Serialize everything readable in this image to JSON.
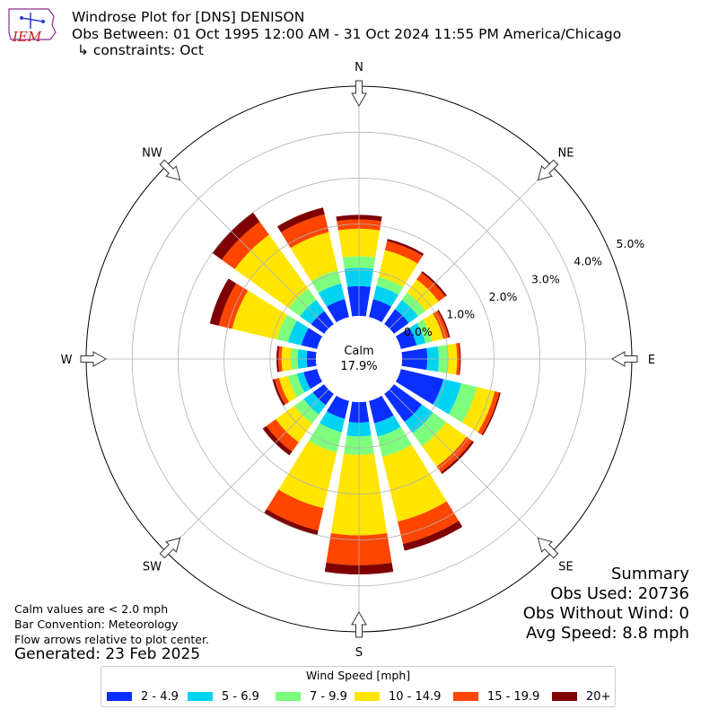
{
  "header": {
    "title": "Windrose Plot for [DNS] DENISON",
    "period": "Obs Between: 01 Oct 1995 12:00 AM - 31 Oct 2024 11:55 PM America/Chicago",
    "constraints": "↳ constraints: Oct"
  },
  "logo": {
    "text": "IEM",
    "icon": "iem-logo-icon"
  },
  "notes": {
    "calm": "Calm values are < 2.0 mph",
    "convention": "Bar Convention: Meteorology",
    "arrows": "Flow arrows relative to plot center.",
    "generated": "Generated: 23 Feb 2025"
  },
  "summary": {
    "title": "Summary",
    "obs_used": "Obs Used: 20736",
    "obs_without_wind": "Obs Without Wind: 0",
    "avg_speed": "Avg Speed: 8.8 mph"
  },
  "chart_data": {
    "type": "windrose",
    "calm": {
      "label": "Calm",
      "value": "17.9%"
    },
    "directions": [
      "N",
      "NNE",
      "NE",
      "ENE",
      "E",
      "ESE",
      "SE",
      "SSE",
      "S",
      "SSW",
      "SW",
      "WSW",
      "W",
      "WNW",
      "NW",
      "NNW"
    ],
    "dir_labels": [
      "N",
      "NE",
      "E",
      "SE",
      "S",
      "SW",
      "W",
      "NW"
    ],
    "r_ticks": [
      "0.0%",
      "1.0%",
      "2.0%",
      "3.0%",
      "4.0%",
      "5.0%"
    ],
    "r_max": 5.0,
    "legend_title": "Wind Speed [mph]",
    "bins": [
      {
        "name": "2 - 4.9",
        "color": "#0a2eff"
      },
      {
        "name": "5 - 6.9",
        "color": "#00d2f2"
      },
      {
        "name": "7 - 9.9",
        "color": "#7dff7d"
      },
      {
        "name": "10 - 14.9",
        "color": "#ffe500"
      },
      {
        "name": "15 - 19.9",
        "color": "#ff4500"
      },
      {
        "name": "20+",
        "color": "#7f0000"
      }
    ],
    "values_cumulative_percent": [
      [
        0.65,
        1.05,
        1.3,
        1.9,
        2.1,
        2.2
      ],
      [
        0.4,
        0.7,
        0.9,
        1.5,
        1.7,
        1.75
      ],
      [
        0.4,
        0.65,
        0.85,
        1.2,
        1.38,
        1.42
      ],
      [
        0.35,
        0.55,
        0.7,
        0.95,
        1.07,
        1.1
      ],
      [
        0.55,
        0.8,
        1.0,
        1.2,
        1.26,
        1.28
      ],
      [
        0.95,
        1.35,
        1.7,
        2.1,
        2.2,
        2.23
      ],
      [
        0.75,
        1.05,
        1.4,
        1.95,
        2.1,
        2.15
      ],
      [
        0.5,
        0.8,
        1.25,
        2.7,
        3.2,
        3.35
      ],
      [
        0.45,
        0.75,
        1.15,
        2.9,
        3.55,
        3.75
      ],
      [
        0.4,
        0.7,
        1.15,
        2.4,
        2.9,
        3.0
      ],
      [
        0.3,
        0.55,
        0.8,
        1.3,
        1.55,
        1.65
      ],
      [
        0.3,
        0.45,
        0.65,
        0.85,
        0.95,
        1.0
      ],
      [
        0.2,
        0.4,
        0.55,
        0.75,
        0.82,
        0.86
      ],
      [
        0.35,
        0.65,
        0.9,
        1.9,
        2.2,
        2.4
      ],
      [
        0.35,
        0.65,
        0.95,
        2.4,
        2.75,
        3.0
      ],
      [
        0.4,
        0.75,
        1.05,
        1.9,
        2.3,
        2.45
      ]
    ]
  }
}
